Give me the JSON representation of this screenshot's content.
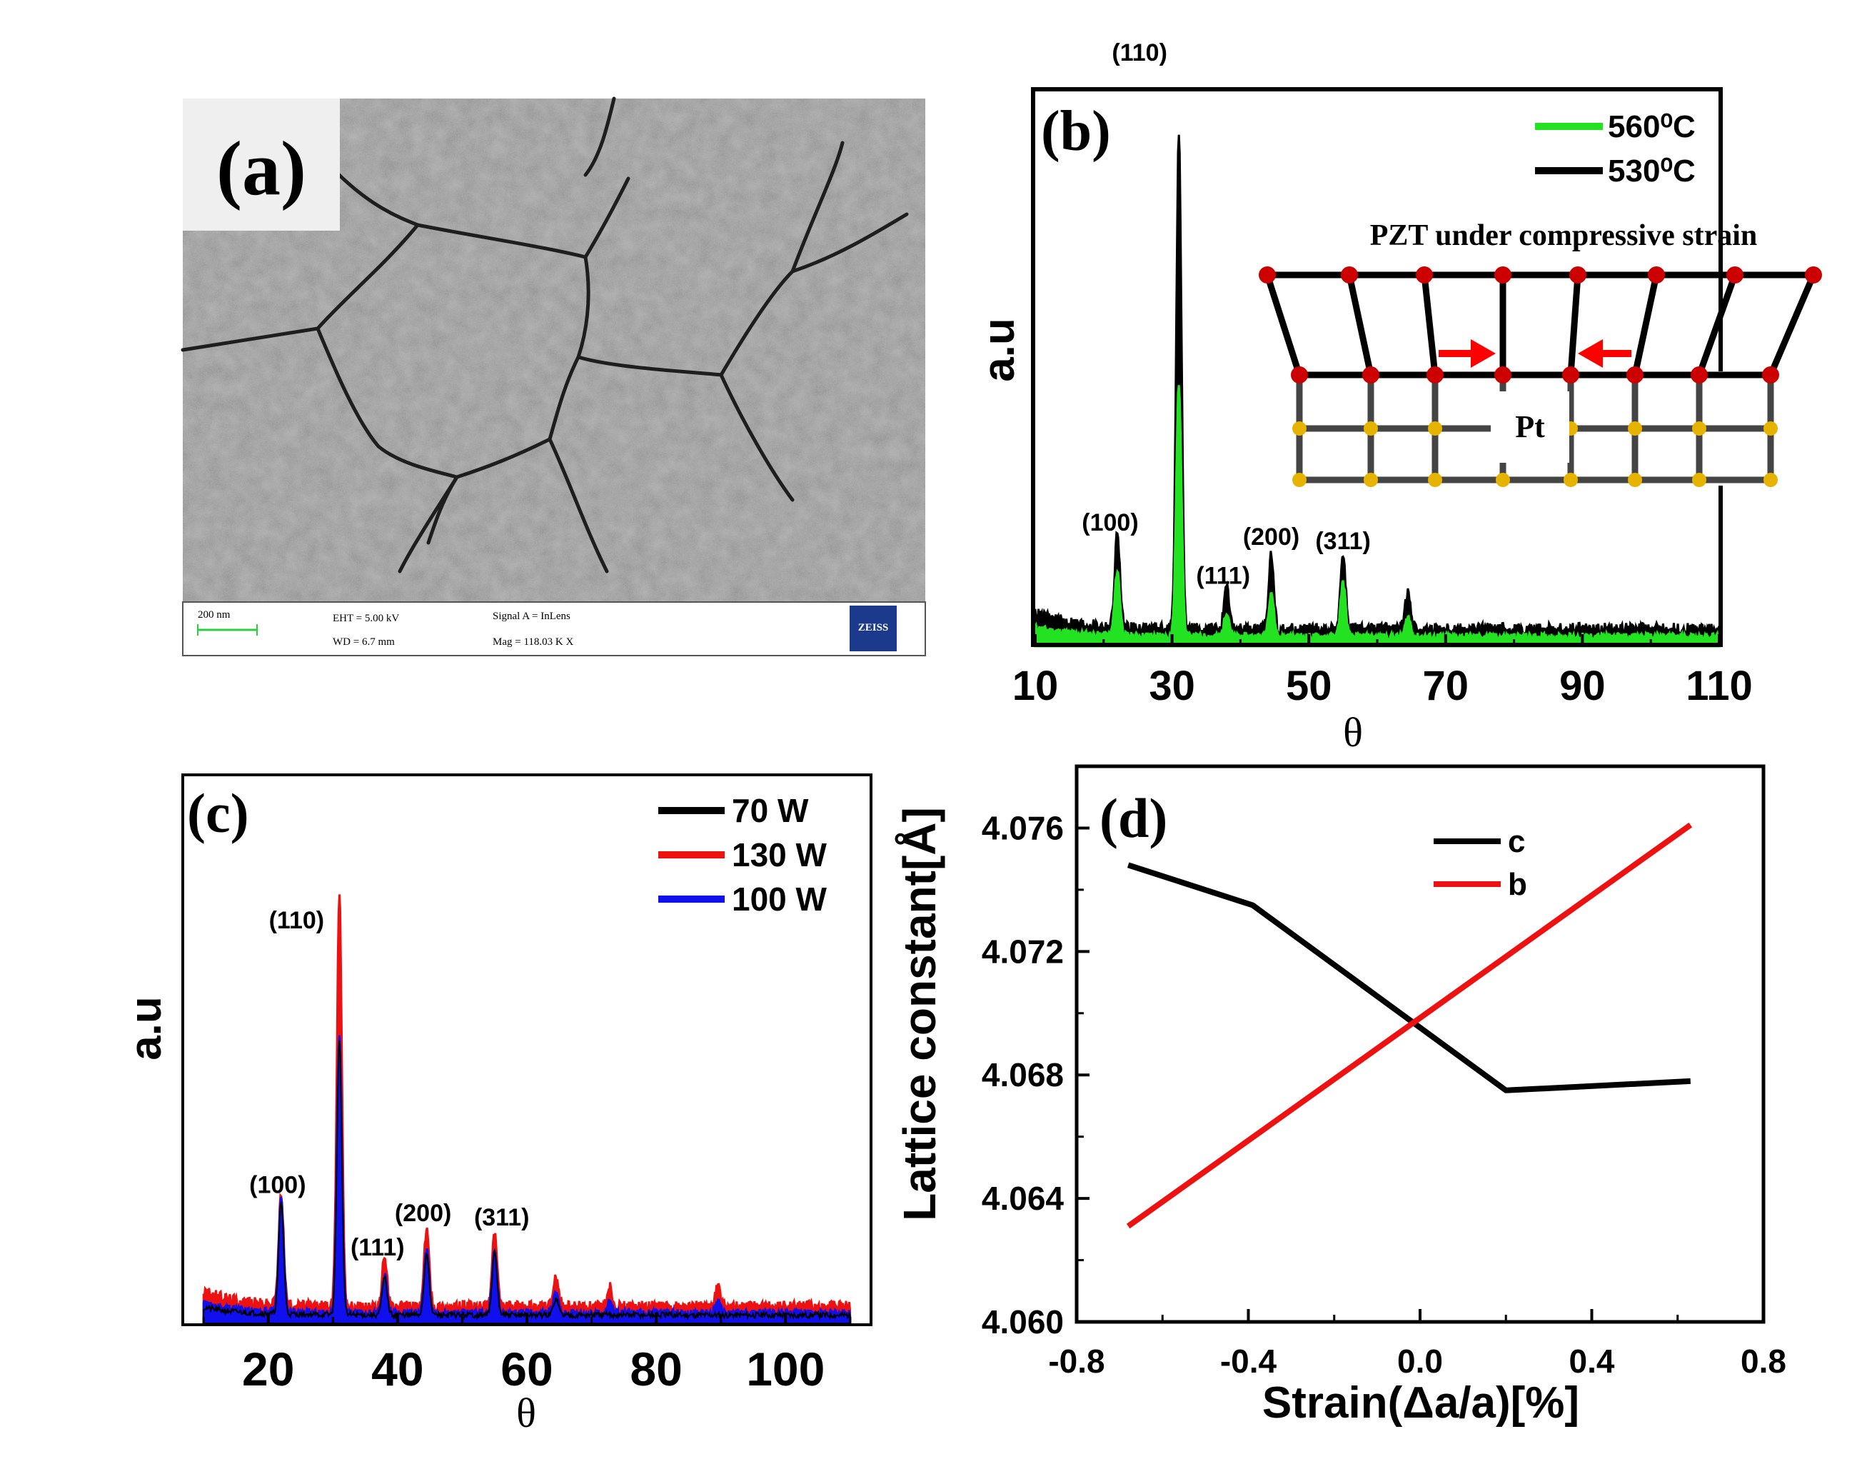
{
  "figure": {
    "panels": [
      {
        "id": "a",
        "type": "image",
        "label": "(a)",
        "footer": {
          "scale_bar": "200 nm",
          "eht": "EHT =  5.00 kV",
          "wd": "WD =  6.7 mm",
          "signal": "Signal A = InLens",
          "mag": "Mag =  118.03 K X",
          "logo": "ZEISS"
        }
      }
    ]
  },
  "chart_data": [
    {
      "id": "b",
      "type": "line",
      "label": "(b)",
      "xlabel": "θ",
      "ylabel": "a.u",
      "xlim": [
        10,
        110
      ],
      "ylim": [
        0,
        100
      ],
      "xticks": [
        "10",
        "30",
        "50",
        "70",
        "90",
        "110"
      ],
      "series": [
        {
          "name": "560⁰C",
          "color": "#22e222",
          "peaks": [
            [
              22,
              13
            ],
            [
              31,
              51
            ],
            [
              38,
              5
            ],
            [
              44.5,
              9
            ],
            [
              55,
              11
            ],
            [
              64.5,
              4
            ]
          ],
          "baseline": 2
        },
        {
          "name": "530⁰C",
          "color": "#000000",
          "peaks": [
            [
              22,
              19
            ],
            [
              31,
              100
            ],
            [
              38,
              8
            ],
            [
              44.5,
              15
            ],
            [
              55,
              15
            ],
            [
              64.5,
              8
            ]
          ],
          "baseline": 3.5
        }
      ],
      "annotations": [
        {
          "text": "(110)",
          "x": 31,
          "y": 100
        },
        {
          "text": "(100)",
          "x": 22,
          "y": 19
        },
        {
          "text": "(111)",
          "x": 38,
          "y": 8
        },
        {
          "text": "(200)",
          "x": 44.5,
          "y": 15
        },
        {
          "text": "(311)",
          "x": 55,
          "y": 15
        }
      ],
      "inset": {
        "title": "PZT under compressive strain",
        "substrate": "Pt",
        "colors": {
          "pzt_atom": "#cc0000",
          "pt_atom": "#e6b400",
          "arrow": "#ff0000",
          "bond": "#000000",
          "pt_bond": "#444444"
        }
      },
      "legend": "top-right"
    },
    {
      "id": "c",
      "type": "line",
      "label": "(c)",
      "xlabel": "θ",
      "ylabel": "a.u",
      "xlim": [
        10,
        110
      ],
      "ylim": [
        0,
        100
      ],
      "xticks": [
        "20",
        "40",
        "60",
        "80",
        "100"
      ],
      "series": [
        {
          "name": "70 W",
          "color": "#000000",
          "peaks": [
            [
              22,
              27
            ],
            [
              31,
              66
            ],
            [
              38,
              9
            ],
            [
              44.5,
              15
            ],
            [
              55,
              15
            ],
            [
              64.5,
              4
            ]
          ],
          "baseline": 2
        },
        {
          "name": "130 W",
          "color": "#ee1111",
          "peaks": [
            [
              22,
              27
            ],
            [
              31,
              100
            ],
            [
              38,
              12
            ],
            [
              44.5,
              19
            ],
            [
              55,
              18
            ],
            [
              64.5,
              7
            ],
            [
              72.8,
              5
            ],
            [
              89.5,
              5
            ]
          ],
          "baseline": 4
        },
        {
          "name": "100 W",
          "color": "#1010ee",
          "peaks": [
            [
              22,
              27
            ],
            [
              31,
              66
            ],
            [
              38,
              9
            ],
            [
              44.5,
              15
            ],
            [
              55,
              15
            ],
            [
              64.5,
              5
            ],
            [
              72.8,
              3
            ],
            [
              89.5,
              3
            ]
          ],
          "baseline": 2.5
        }
      ],
      "annotations": [
        {
          "text": "(110)",
          "x": 31,
          "y": 88
        },
        {
          "text": "(100)",
          "x": 22,
          "y": 27
        },
        {
          "text": "(111)",
          "x": 38,
          "y": 12
        },
        {
          "text": "(200)",
          "x": 44.5,
          "y": 19
        },
        {
          "text": "(311)",
          "x": 55,
          "y": 18
        }
      ],
      "legend": "top-right"
    },
    {
      "id": "d",
      "type": "line",
      "label": "(d)",
      "xlabel": "Strain(Δa/a)[%]",
      "ylabel": "Lattice constant[Å]",
      "xlim": [
        -0.8,
        0.8
      ],
      "ylim": [
        4.06,
        4.078
      ],
      "xticks": [
        "-0.8",
        "-0.4",
        "0.0",
        "0.4",
        "0.8"
      ],
      "yticks": [
        "4.060",
        "4.064",
        "4.068",
        "4.072",
        "4.076"
      ],
      "series": [
        {
          "name": "c",
          "color": "#000000",
          "x": [
            -0.68,
            -0.39,
            0.2,
            0.63
          ],
          "y": [
            4.0748,
            4.0735,
            4.0675,
            4.0678
          ]
        },
        {
          "name": "b",
          "color": "#ee1111",
          "x": [
            -0.68,
            0.63
          ],
          "y": [
            4.0631,
            4.0761
          ]
        }
      ],
      "legend": "top-right"
    }
  ]
}
